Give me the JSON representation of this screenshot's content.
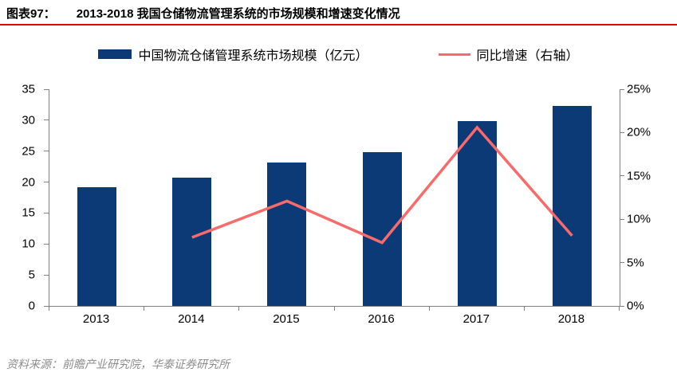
{
  "header": {
    "label": "图表97：",
    "title": "2013-2018 我国仓储物流管理系统的市场规模和增速变化情况"
  },
  "legend": [
    {
      "type": "bar",
      "label": "中国物流仓储管理系统市场规模（亿元）",
      "color": "#0c3a76"
    },
    {
      "type": "line",
      "label": "同比增速（右轴）",
      "color": "#f96a6a"
    }
  ],
  "footer": {
    "source": "资料来源：前瞻产业研究院，华泰证券研究所"
  },
  "colors": {
    "bar": "#0c3a76",
    "line": "#f96a6a",
    "title_underline": "#e8000b",
    "axis": "#7f7f7f",
    "footer_text": "#8c8c8c"
  },
  "chart_data": {
    "type": "bar+line",
    "title": "2013-2018 我国仓储物流管理系统的市场规模和增速变化情况",
    "categories": [
      "2013",
      "2014",
      "2015",
      "2016",
      "2017",
      "2018"
    ],
    "series": [
      {
        "name": "中国物流仓储管理系统市场规模（亿元）",
        "type": "bar",
        "axis": "left",
        "color": "#0c3a76",
        "values": [
          19.2,
          20.7,
          23.2,
          24.8,
          29.9,
          32.3
        ]
      },
      {
        "name": "同比增速（右轴）",
        "type": "line",
        "axis": "right",
        "color": "#f96a6a",
        "values": [
          null,
          7.9,
          12.1,
          7.3,
          20.6,
          8.1
        ]
      }
    ],
    "left_axis": {
      "min": 0,
      "max": 35,
      "step": 5,
      "ticks": [
        "0",
        "5",
        "10",
        "15",
        "20",
        "25",
        "30",
        "35"
      ]
    },
    "right_axis": {
      "min": 0,
      "max": 25,
      "step": 5,
      "ticks": [
        "0%",
        "5%",
        "10%",
        "15%",
        "20%",
        "25%"
      ]
    },
    "grid": false,
    "legend_position": "top"
  }
}
